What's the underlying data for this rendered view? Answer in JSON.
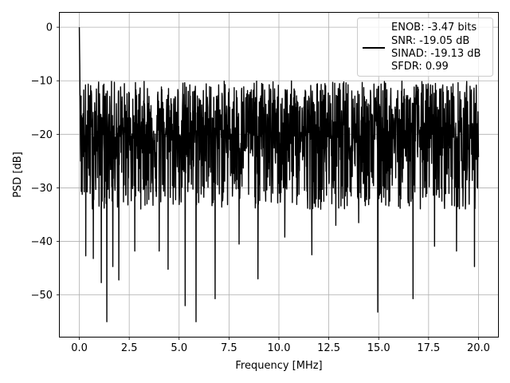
{
  "chart_data": {
    "type": "line",
    "xlabel": "Frequency [MHz]",
    "ylabel": "PSD [dB]",
    "xlim": [
      -0.98,
      20.98
    ],
    "ylim": [
      -57.8,
      2.7
    ],
    "xticks": [
      0.0,
      2.5,
      5.0,
      7.5,
      10.0,
      12.5,
      15.0,
      17.5,
      20.0
    ],
    "xtick_labels": [
      "0.0",
      "2.5",
      "5.0",
      "7.5",
      "10.0",
      "12.5",
      "15.0",
      "17.5",
      "20.0"
    ],
    "yticks": [
      0,
      -10,
      -20,
      -30,
      -40,
      -50
    ],
    "ytick_labels": [
      "0",
      "−10",
      "−20",
      "−30",
      "−40",
      "−50"
    ],
    "grid": true,
    "legend": {
      "placement": "top-right",
      "entries": [
        "ENOB: -3.47 bits",
        "SNR: -19.05 dB",
        "SINAD: -19.13 dB",
        "SFDR: 0.99"
      ]
    },
    "series": [
      {
        "color": "#000000",
        "x_range": [
          0.0,
          20.0
        ],
        "baseline_db": -20,
        "upper_envelope_db": -10,
        "lower_envelope_db": -34,
        "peak": {
          "x": 0.0,
          "y": 0.0
        },
        "deep_nulls": [
          {
            "x": 0.32,
            "y": -42.7
          },
          {
            "x": 0.7,
            "y": -43.2
          },
          {
            "x": 1.1,
            "y": -47.7
          },
          {
            "x": 1.38,
            "y": -55.0
          },
          {
            "x": 1.68,
            "y": -44.7
          },
          {
            "x": 1.98,
            "y": -47.2
          },
          {
            "x": 2.78,
            "y": -41.8
          },
          {
            "x": 4.0,
            "y": -41.8
          },
          {
            "x": 4.45,
            "y": -45.2
          },
          {
            "x": 5.3,
            "y": -52.0
          },
          {
            "x": 5.85,
            "y": -55.0
          },
          {
            "x": 6.8,
            "y": -50.7
          },
          {
            "x": 8.0,
            "y": -40.5
          },
          {
            "x": 8.95,
            "y": -47.0
          },
          {
            "x": 10.3,
            "y": -39.2
          },
          {
            "x": 11.65,
            "y": -42.5
          },
          {
            "x": 12.85,
            "y": -37.0
          },
          {
            "x": 14.0,
            "y": -36.5
          },
          {
            "x": 14.95,
            "y": -53.2
          },
          {
            "x": 16.72,
            "y": -50.7
          },
          {
            "x": 17.8,
            "y": -40.9
          },
          {
            "x": 18.9,
            "y": -41.8
          },
          {
            "x": 19.8,
            "y": -44.7
          }
        ]
      }
    ]
  }
}
